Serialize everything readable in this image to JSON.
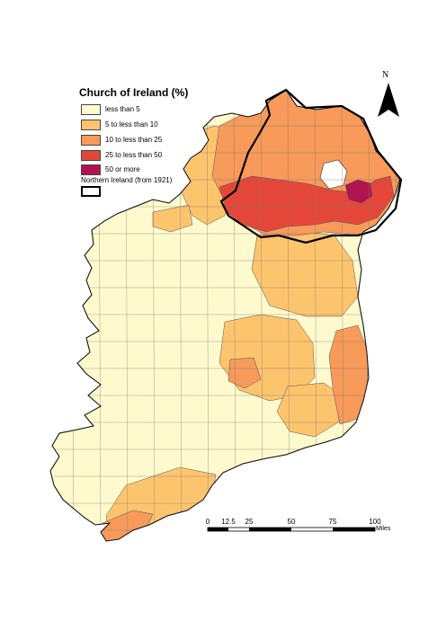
{
  "legend": {
    "title": "Church of Ireland (%)",
    "items": [
      {
        "label": "less than 5",
        "color": "#fffacd"
      },
      {
        "label": "5 to less than 10",
        "color": "#fdc46e"
      },
      {
        "label": "10 to less than 25",
        "color": "#f79a5a"
      },
      {
        "label": "25 to less than 50",
        "color": "#e4473a"
      },
      {
        "label": "50 or more",
        "color": "#b0144f"
      }
    ],
    "boundary_label": "Northern Ireland (from 1921)"
  },
  "north_arrow": {
    "label": "N"
  },
  "scale_bar": {
    "ticks": [
      "0",
      "12.5",
      "25",
      "50",
      "75",
      "100"
    ],
    "unit": "Miles"
  }
}
